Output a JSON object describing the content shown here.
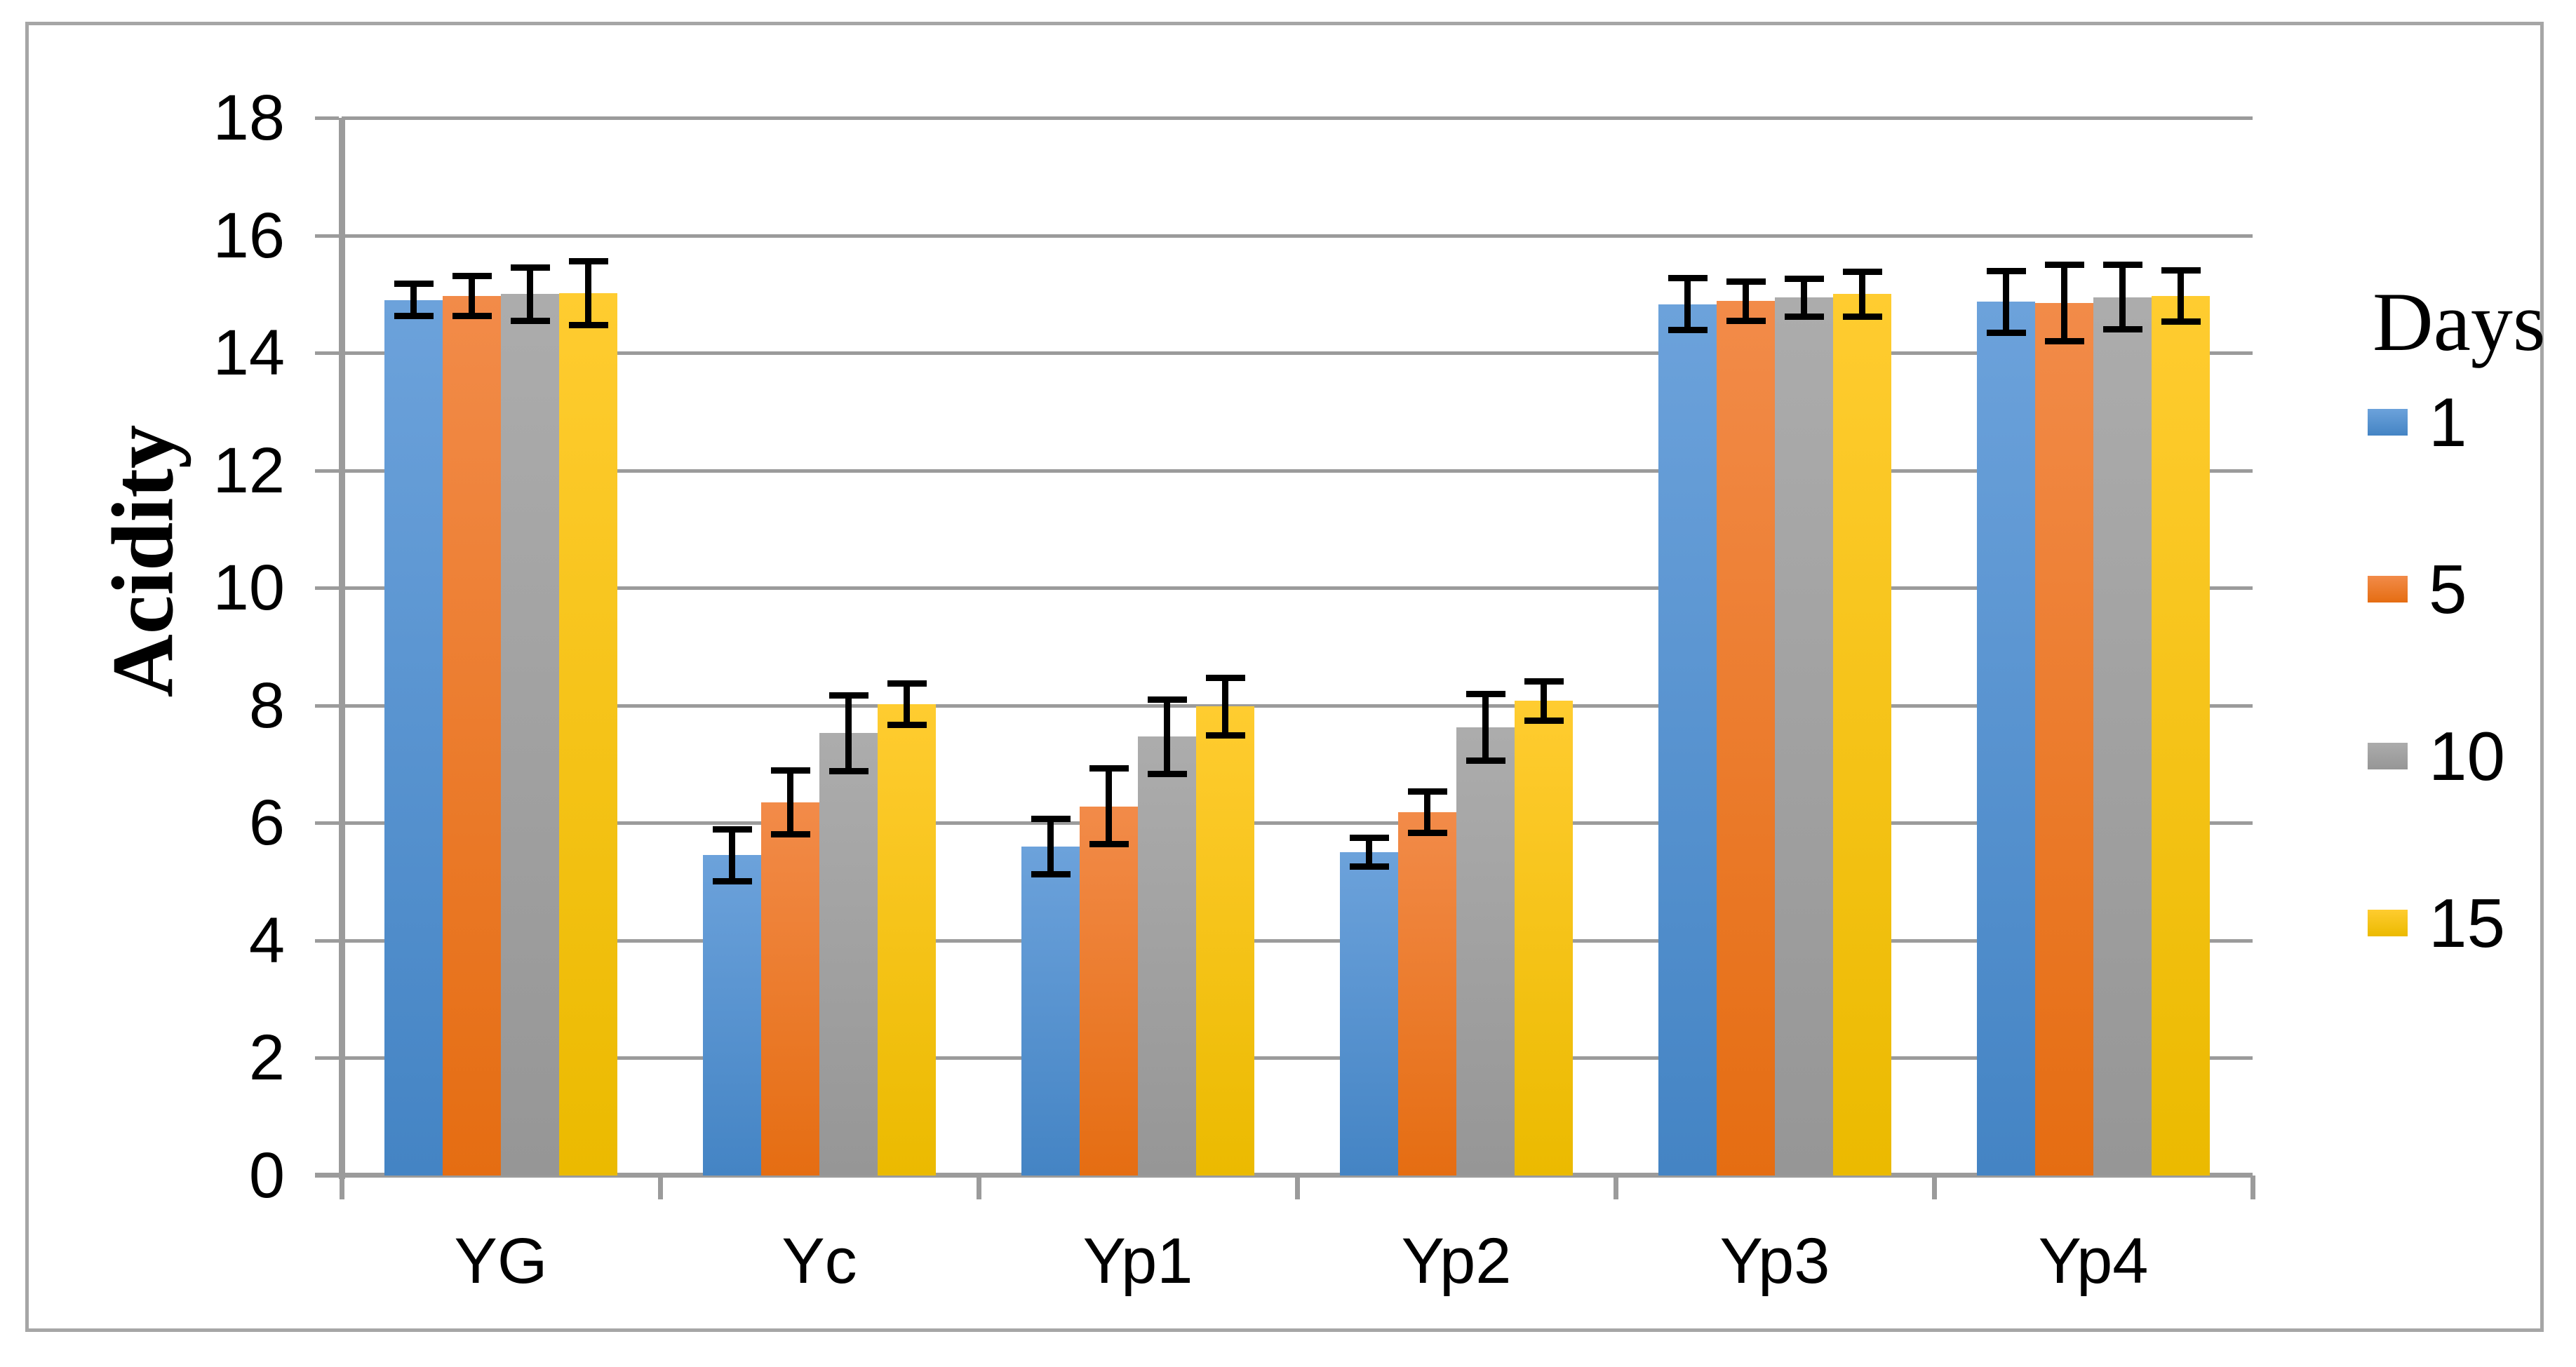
{
  "chart_data": {
    "type": "bar",
    "title": "",
    "xlabel": "",
    "ylabel": "Acidity",
    "ylim": [
      0,
      18
    ],
    "yticks": [
      0,
      2,
      4,
      6,
      8,
      10,
      12,
      14,
      16,
      18
    ],
    "grid": "horizontal",
    "error_bars": true,
    "legend_title": "Days",
    "legend_position": "right",
    "categories": [
      "YG",
      "Yc",
      "Yp1",
      "Yp2",
      "Yp3",
      "Yp4"
    ],
    "series": [
      {
        "name": "1",
        "color_top": "#6CA2DB",
        "color_bottom": "#4484C4",
        "values": [
          14.9,
          5.45,
          5.6,
          5.5,
          14.83,
          14.87
        ],
        "errors": [
          0.28,
          0.45,
          0.48,
          0.25,
          0.45,
          0.53
        ]
      },
      {
        "name": "5",
        "color_top": "#F28B49",
        "color_bottom": "#E56D12",
        "values": [
          14.97,
          6.35,
          6.28,
          6.18,
          14.88,
          14.85
        ],
        "errors": [
          0.35,
          0.55,
          0.65,
          0.36,
          0.34,
          0.66
        ]
      },
      {
        "name": "10",
        "color_top": "#ACACAC",
        "color_bottom": "#969696",
        "values": [
          15.0,
          7.53,
          7.47,
          7.63,
          14.94,
          14.95
        ],
        "errors": [
          0.46,
          0.65,
          0.64,
          0.57,
          0.33,
          0.56
        ]
      },
      {
        "name": "15",
        "color_top": "#FFCC30",
        "color_bottom": "#EBBA00",
        "values": [
          15.02,
          8.02,
          7.98,
          8.08,
          15.0,
          14.97
        ],
        "errors": [
          0.55,
          0.36,
          0.5,
          0.34,
          0.39,
          0.44
        ]
      }
    ],
    "colors": {
      "gridline": "#9B9B9B",
      "axis": "#9B9B9B",
      "figure_border": "#A6A6A6",
      "error_bar": "#000000",
      "background": "#FFFFFF"
    }
  }
}
